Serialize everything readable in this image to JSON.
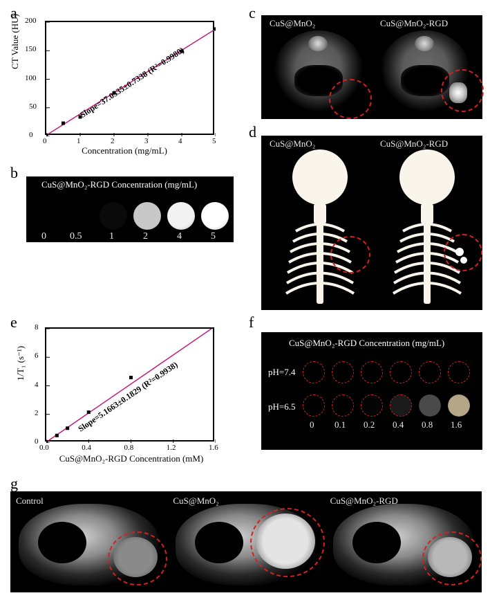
{
  "a": {
    "label": "a",
    "type": "scatter+line",
    "xlabel": "Concentration (mg/mL)",
    "ylabel": "CT Value (HU)",
    "xlim": [
      0,
      5
    ],
    "ylim": [
      0,
      200
    ],
    "xticks": [
      0,
      1,
      2,
      3,
      4,
      5
    ],
    "yticks": [
      0,
      50,
      100,
      150,
      200
    ],
    "points_x": [
      0,
      0.5,
      1,
      2,
      4,
      5
    ],
    "points_y": [
      2,
      23,
      34,
      76,
      149,
      188
    ],
    "slope_text": "Slope=37.0335±0.7338 (R²=0.9980)",
    "line_color": "#c41e7a",
    "marker_color": "#000000",
    "marker_size": 5,
    "line_width": 1.5,
    "background_color": "#ffffff"
  },
  "b": {
    "label": "b",
    "title": "CuS@MnO₂-RGD Concentration (mg/mL)",
    "concs": [
      "0",
      "0.5",
      "1",
      "2",
      "4",
      "5"
    ],
    "well_colors": [
      "#000000",
      "#000000",
      "#0a0a0a",
      "#c8c8c8",
      "#f2f2f2",
      "#ffffff"
    ],
    "background_color": "#000000"
  },
  "c": {
    "label": "c",
    "left_label": "CuS@MnO₂",
    "right_label": "CuS@MnO₂-RGD",
    "circle_color": "#d62020"
  },
  "d": {
    "label": "d",
    "left_label": "CuS@MnO₂",
    "right_label": "CuS@MnO₂-RGD",
    "circle_color": "#d62020"
  },
  "e": {
    "label": "e",
    "type": "scatter+line",
    "xlabel": "CuS@MnO₂-RGD Concentration (mM)",
    "ylabel": "1/T₁ (s⁻¹)",
    "xlim": [
      0.0,
      1.6
    ],
    "ylim": [
      0,
      8
    ],
    "xticks": [
      "0.0",
      "0.4",
      "0.8",
      "1.2",
      "1.6"
    ],
    "yticks": [
      0,
      2,
      4,
      6,
      8
    ],
    "points_x": [
      0.0,
      0.1,
      0.2,
      0.4,
      0.8,
      1.6
    ],
    "points_y": [
      0.06,
      0.52,
      1.03,
      2.15,
      4.58,
      8.2
    ],
    "slope_text": "Slope=5.1663±0.1829 (R²=0.9938)",
    "line_color": "#c41e7a",
    "marker_color": "#000000",
    "marker_size": 5,
    "line_width": 1.5
  },
  "f": {
    "label": "f",
    "title": "CuS@MnO₂-RGD Concentration (mg/mL)",
    "row1_label": "pH=7.4",
    "row2_label": "pH=6.5",
    "concs": [
      "0",
      "0.1",
      "0.2",
      "0.4",
      "0.8",
      "1.6"
    ],
    "row1_colors": [
      "#000000",
      "#000000",
      "#000000",
      "#000000",
      "#000000",
      "#000000"
    ],
    "row2_colors": [
      "#000000",
      "#000000",
      "#050505",
      "#1a1a1a",
      "#4a4a4a",
      "#b5a688"
    ],
    "circle_color": "#d62020",
    "background_color": "#000000"
  },
  "g": {
    "label": "g",
    "labels": [
      "Control",
      "CuS@MnO₂",
      "CuS@MnO₂-RGD"
    ],
    "tumor_brightness": [
      "#8a8a8a",
      "#e4e4e4",
      "#b8b8b8"
    ],
    "circle_color": "#d62020"
  }
}
